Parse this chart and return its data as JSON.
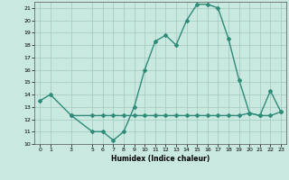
{
  "title": "",
  "xlabel": "Humidex (Indice chaleur)",
  "ylabel": "",
  "xlim": [
    -0.5,
    23.5
  ],
  "ylim": [
    10,
    21.5
  ],
  "yticks": [
    10,
    11,
    12,
    13,
    14,
    15,
    16,
    17,
    18,
    19,
    20,
    21
  ],
  "xticks": [
    0,
    1,
    3,
    5,
    6,
    7,
    8,
    9,
    10,
    11,
    12,
    13,
    14,
    15,
    16,
    17,
    18,
    19,
    20,
    21,
    22,
    23
  ],
  "line1_x": [
    0,
    1,
    3,
    5,
    6,
    7,
    8,
    9,
    10,
    11,
    12,
    13,
    14,
    15,
    16,
    17,
    18,
    19,
    20,
    21,
    22,
    23
  ],
  "line1_y": [
    13.5,
    14.0,
    12.3,
    11.0,
    11.0,
    10.3,
    11.0,
    13.0,
    16.0,
    18.3,
    18.8,
    18.0,
    20.0,
    21.3,
    21.3,
    21.0,
    18.5,
    15.2,
    12.5,
    12.3,
    14.3,
    12.6
  ],
  "line2_x": [
    3,
    5,
    6,
    7,
    8,
    9,
    10,
    11,
    12,
    13,
    14,
    15,
    16,
    17,
    18,
    19,
    20,
    21,
    22,
    23
  ],
  "line2_y": [
    12.3,
    12.3,
    12.3,
    12.3,
    12.3,
    12.3,
    12.3,
    12.3,
    12.3,
    12.3,
    12.3,
    12.3,
    12.3,
    12.3,
    12.3,
    12.3,
    12.5,
    12.3,
    12.3,
    12.6
  ],
  "line_color": "#2e8b77",
  "bg_color": "#c8e8e0",
  "grid_color": "#a0c8c0",
  "text_color": "#000000",
  "marker": "D",
  "markersize": 2,
  "linewidth": 1.0
}
